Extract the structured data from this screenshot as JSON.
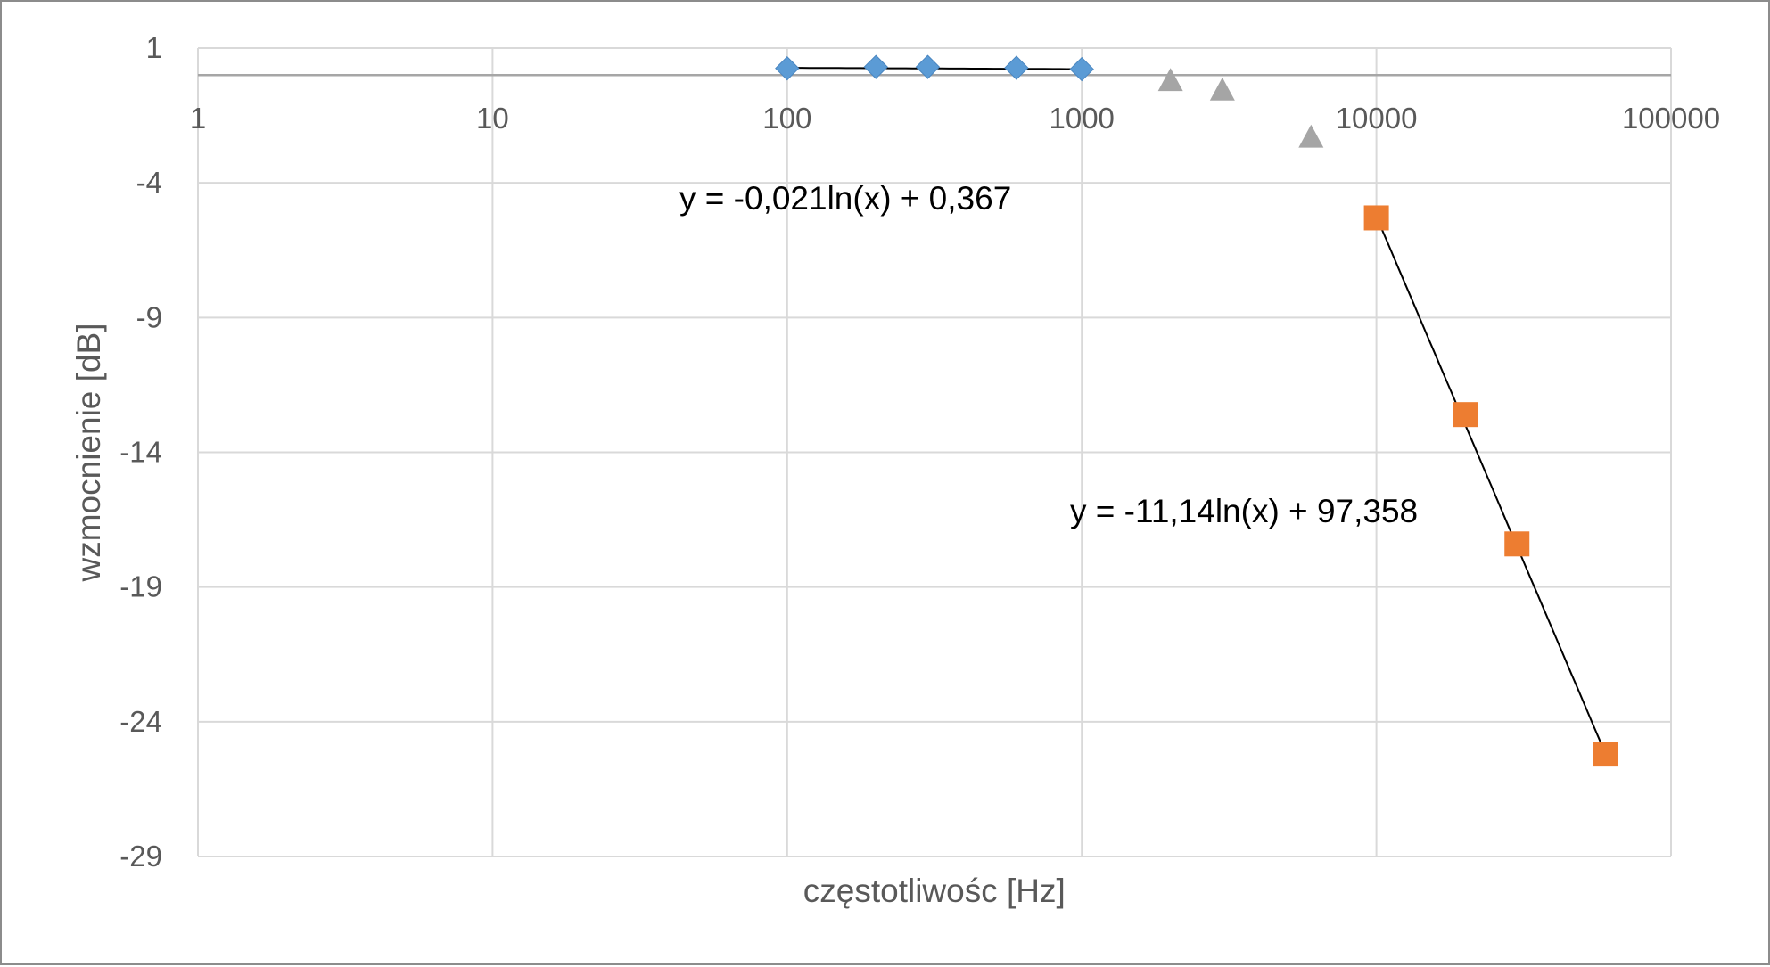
{
  "chart_data": {
    "type": "scatter",
    "title": "",
    "xlabel": "częstotliwośc [Hz]",
    "ylabel": "wzmocnienie [dB]",
    "x_scale": "log",
    "xlim": [
      1,
      100000
    ],
    "ylim": [
      -29,
      1
    ],
    "x_ticks": [
      "1",
      "10",
      "100",
      "1000",
      "10000",
      "100000"
    ],
    "y_ticks": [
      "1",
      "-4",
      "-9",
      "-14",
      "-19",
      "-24",
      "-29"
    ],
    "x_axis_crosses_y": 0,
    "grid": true,
    "legend": "none",
    "series": [
      {
        "marker": "diamond",
        "color": "#5b9bd5",
        "x": [
          100,
          200,
          300,
          600,
          1000
        ],
        "y": [
          0.25,
          0.3,
          0.3,
          0.27,
          0.22
        ]
      },
      {
        "marker": "triangle",
        "color": "#a5a5a5",
        "x": [
          2000,
          3000,
          6000
        ],
        "y": [
          -0.2,
          -0.55,
          -2.3
        ]
      },
      {
        "marker": "square",
        "color": "#ed7d31",
        "x": [
          10000,
          20000,
          30000,
          60000
        ],
        "y": [
          -5.3,
          -12.6,
          -17.4,
          -25.2
        ]
      }
    ],
    "trendlines": [
      {
        "type": "logarithmic",
        "a": -0.021,
        "b": 0.367,
        "x_range": [
          100,
          1000
        ],
        "color": "#000000",
        "equation": "y = -0,021ln(x) + 0,367"
      },
      {
        "type": "logarithmic",
        "a": -11.14,
        "b": 97.358,
        "x_range": [
          10000,
          60000
        ],
        "color": "#000000",
        "equation": "y = -11,14ln(x) + 97,358"
      }
    ],
    "colors": {
      "grid": "#d9d9d9",
      "axis": "#a6a6a6",
      "text": "#595959",
      "border": "#8c8c8c"
    }
  }
}
